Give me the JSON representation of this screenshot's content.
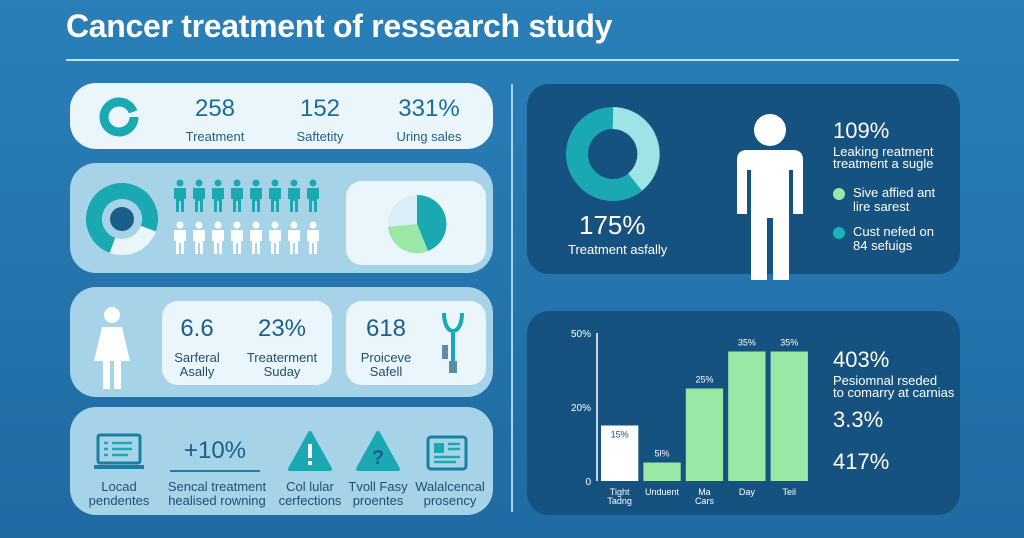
{
  "title": "Cancer treatment of ressearch study",
  "panel1": {
    "stats": [
      {
        "value": "258",
        "label": "Treatment"
      },
      {
        "value": "152",
        "label": "Saftetity"
      },
      {
        "value": "331%",
        "label": "Uring sales"
      }
    ]
  },
  "panel3": {
    "stats": [
      {
        "value": "6.6",
        "label1": "Sarferal",
        "label2": "Asally"
      },
      {
        "value": "23%",
        "label1": "Treaterment",
        "label2": "Suday"
      },
      {
        "value": "618",
        "label1": "Proiceve",
        "label2": "Safell"
      }
    ]
  },
  "panel4": {
    "items": [
      {
        "icon": "laptop-checklist-icon",
        "label1": "Locad",
        "label2": "pendentes"
      },
      {
        "icon": "",
        "value": "+10%",
        "label1": "Sencal treatment",
        "label2": "healised rowning"
      },
      {
        "icon": "warning-icon",
        "label1": "Col lular",
        "label2": "cerfections"
      },
      {
        "icon": "question-icon",
        "label1": "Tvoll Fasy",
        "label2": "proentes"
      },
      {
        "icon": "document-icon",
        "label1": "Walalcencal",
        "label2": "prosency"
      }
    ]
  },
  "right_top": {
    "donut_value": "175%",
    "donut_label": "Treatment asfally",
    "stat_value": "109%",
    "stat_line1": "Leaking reatment",
    "stat_line2": "treatment a sugle",
    "legend": [
      {
        "line1": "Sive affied ant",
        "line2": "lire sarest",
        "color": "#9be8a6"
      },
      {
        "line1": "Cust nefed on",
        "line2": "84 sefuigs",
        "color": "#1ab3b8"
      }
    ]
  },
  "right_bottom": {
    "stats": [
      {
        "value": "403%",
        "line1": "Pesiomnal rseded",
        "line2": "to comarry at carnias"
      },
      {
        "value": "3.3%"
      },
      {
        "value": "417%"
      }
    ]
  },
  "chart_data": {
    "type": "bar",
    "categories": [
      "Tight Tadng",
      "Unduent",
      "Ma Cars",
      "Day",
      "Teil"
    ],
    "values": [
      15,
      5,
      25,
      35,
      35
    ],
    "value_labels": [
      "15%",
      "5l%",
      "25%",
      "35%",
      "35%"
    ],
    "y_ticks": [
      "0",
      "20%",
      "50%"
    ],
    "colors": [
      "#ffffff",
      "#9be8a6",
      "#9be8a6",
      "#9be8a6",
      "#9be8a6"
    ],
    "title": "",
    "xlabel": "",
    "ylabel": "",
    "grid": false
  }
}
